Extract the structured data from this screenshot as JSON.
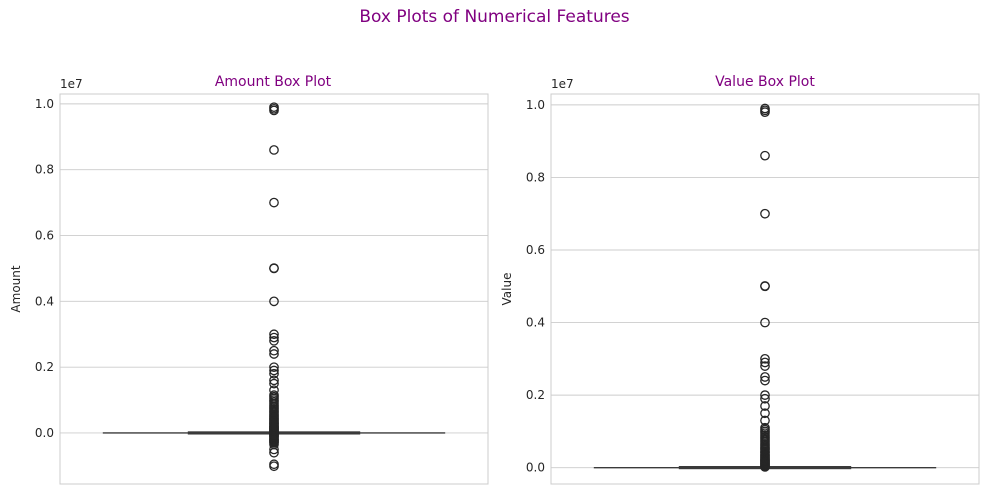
{
  "figure": {
    "suptitle": "Box Plots of Numerical Features"
  },
  "chart_data": [
    {
      "type": "box",
      "title": "Amount Box Plot",
      "xlabel": "",
      "ylabel": "Amount",
      "offset_label": "1e7",
      "ylim": [
        -0.155,
        1.03
      ],
      "yticks": [
        0.0,
        0.2,
        0.4,
        0.6,
        0.8,
        1.0
      ],
      "ytick_labels": [
        "0.0",
        "0.2",
        "0.4",
        "0.6",
        "0.8",
        "1.0"
      ],
      "grid": true,
      "box": {
        "whisker_low": -0.0006,
        "q1": -0.0002,
        "median": 0.0,
        "q3": 0.0002,
        "whisker_high": 0.0006
      },
      "outliers": [
        -0.101,
        -0.095,
        -0.06,
        -0.05,
        -0.035,
        -0.03,
        -0.028,
        -0.025,
        -0.022,
        -0.02,
        -0.018,
        -0.015,
        -0.012,
        -0.01,
        -0.008,
        -0.006,
        -0.004,
        -0.002,
        0.002,
        0.004,
        0.006,
        0.008,
        0.01,
        0.012,
        0.014,
        0.016,
        0.018,
        0.02,
        0.022,
        0.025,
        0.028,
        0.03,
        0.033,
        0.036,
        0.04,
        0.043,
        0.046,
        0.05,
        0.053,
        0.056,
        0.06,
        0.064,
        0.068,
        0.072,
        0.076,
        0.08,
        0.085,
        0.09,
        0.095,
        0.1,
        0.105,
        0.11,
        0.115,
        0.13,
        0.15,
        0.16,
        0.18,
        0.19,
        0.2,
        0.24,
        0.25,
        0.28,
        0.29,
        0.3,
        0.4,
        0.5,
        0.501,
        0.7,
        0.86,
        0.98,
        0.985,
        0.99
      ]
    },
    {
      "type": "box",
      "title": "Value Box Plot",
      "xlabel": "",
      "ylabel": "Value",
      "offset_label": "1e7",
      "ylim": [
        -0.045,
        1.03
      ],
      "yticks": [
        0.0,
        0.2,
        0.4,
        0.6,
        0.8,
        1.0
      ],
      "ytick_labels": [
        "0.0",
        "0.2",
        "0.4",
        "0.6",
        "0.8",
        "1.0"
      ],
      "grid": true,
      "box": {
        "whisker_low": 0.0,
        "q1": 0.0,
        "median": 0.0,
        "q3": 0.0002,
        "whisker_high": 0.0006
      },
      "outliers": [
        0.002,
        0.004,
        0.006,
        0.008,
        0.01,
        0.012,
        0.014,
        0.016,
        0.018,
        0.02,
        0.022,
        0.025,
        0.028,
        0.03,
        0.033,
        0.036,
        0.04,
        0.043,
        0.046,
        0.05,
        0.053,
        0.056,
        0.06,
        0.064,
        0.068,
        0.072,
        0.076,
        0.08,
        0.085,
        0.09,
        0.095,
        0.1,
        0.105,
        0.11,
        0.13,
        0.15,
        0.17,
        0.19,
        0.2,
        0.24,
        0.25,
        0.28,
        0.29,
        0.3,
        0.4,
        0.5,
        0.501,
        0.7,
        0.86,
        0.98,
        0.985,
        0.99
      ]
    }
  ]
}
